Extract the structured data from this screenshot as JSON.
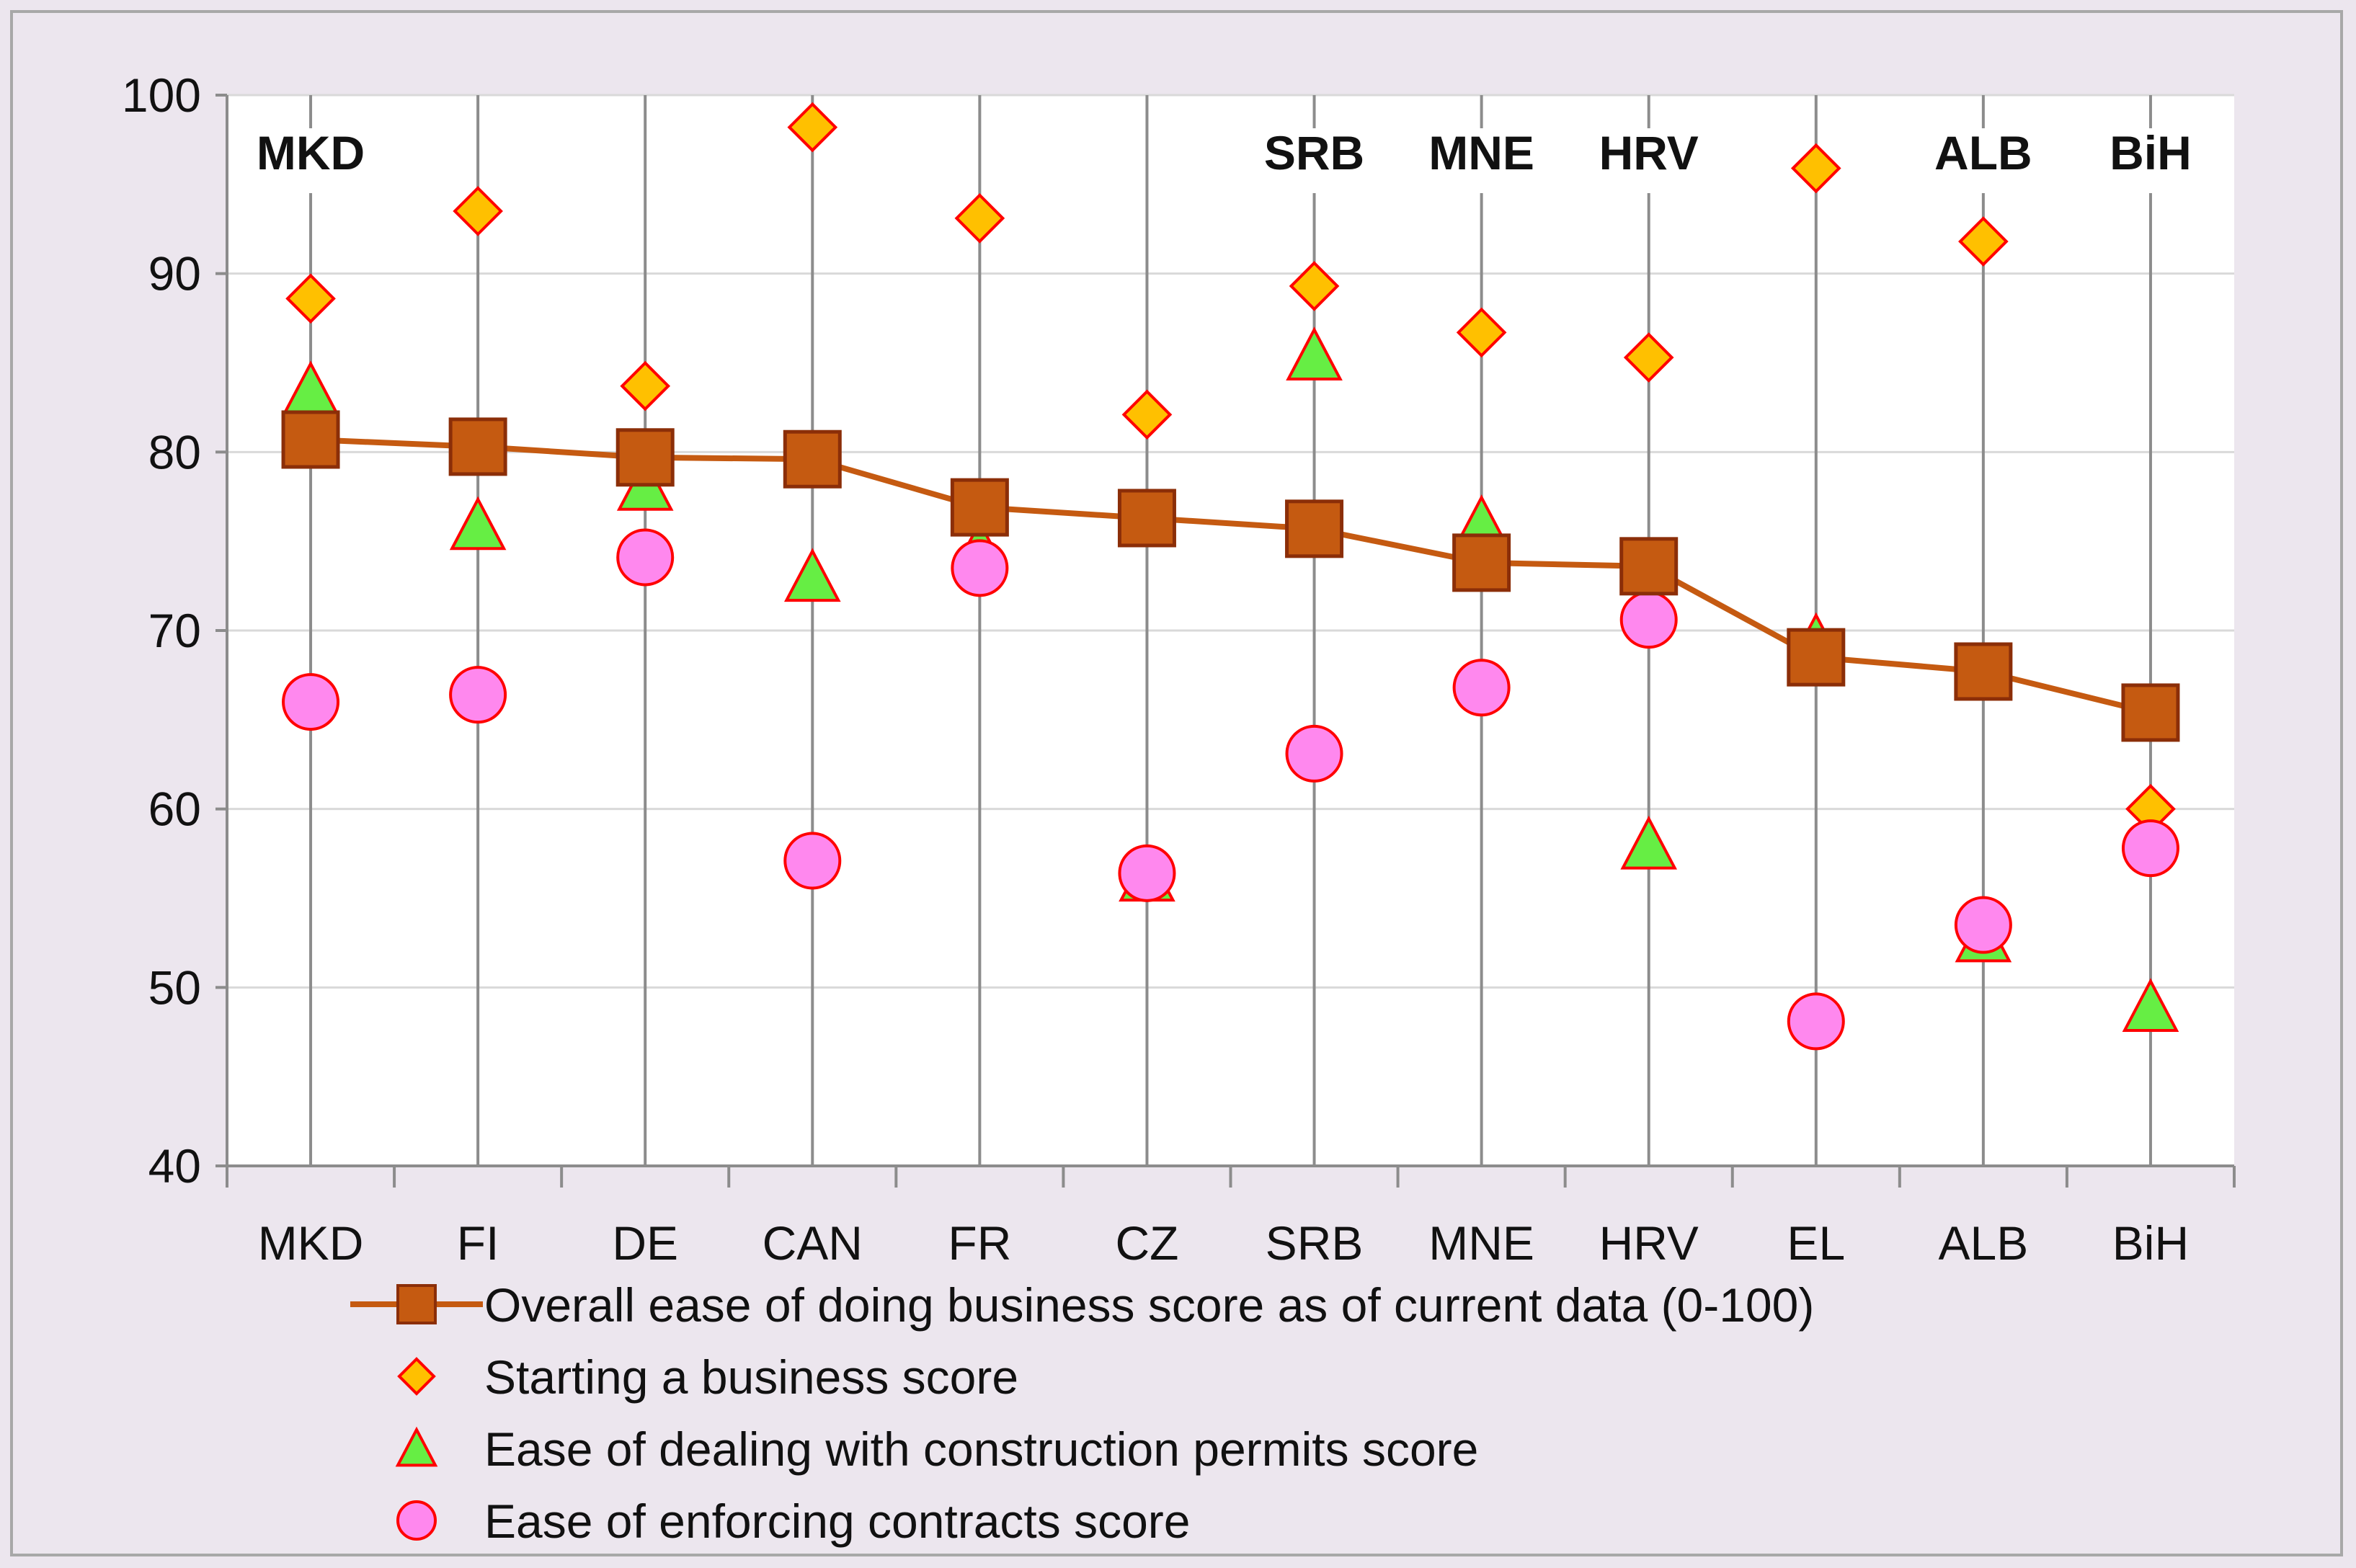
{
  "chart_data": {
    "type": "line",
    "title": "",
    "xlabel": "",
    "ylabel": "",
    "ylim": [
      40,
      100
    ],
    "yticks": [
      40,
      50,
      60,
      70,
      80,
      90,
      100
    ],
    "grid": true,
    "categories": [
      "MKD",
      "FI",
      "DE",
      "CAN",
      "FR",
      "CZ",
      "SRB",
      "MNE",
      "HRV",
      "EL",
      "ALB",
      "BiH"
    ],
    "top_labels": [
      "MKD",
      "",
      "",
      "",
      "",
      "",
      "SRB",
      "MNE",
      "HRV",
      "",
      "ALB",
      "BiH"
    ],
    "series": [
      {
        "name": "Overall ease of doing business score as of current data (0-100)",
        "marker": "square-line",
        "color": "#c55a11",
        "values": [
          80.7,
          80.3,
          79.7,
          79.6,
          76.9,
          76.3,
          75.7,
          73.8,
          73.6,
          68.5,
          67.7,
          65.4
        ]
      },
      {
        "name": "Starting a business score",
        "marker": "diamond",
        "color": "#ffc000",
        "values": [
          88.6,
          93.5,
          83.7,
          98.2,
          93.1,
          82.1,
          89.3,
          86.7,
          85.3,
          95.9,
          91.8,
          60.0
        ]
      },
      {
        "name": "Ease of dealing with construction permits score",
        "marker": "triangle",
        "color": "#66ee44",
        "values": [
          83.5,
          75.9,
          78.1,
          73.0,
          74.6,
          56.2,
          85.4,
          76.0,
          58.0,
          69.4,
          52.8,
          48.9
        ]
      },
      {
        "name": "Ease of enforcing contracts score",
        "marker": "circle",
        "color": "#ff88ee",
        "values": [
          66.0,
          66.4,
          74.1,
          57.1,
          73.5,
          56.4,
          63.1,
          66.8,
          70.6,
          48.1,
          53.5,
          57.8
        ]
      }
    ],
    "legend_position": "bottom"
  }
}
